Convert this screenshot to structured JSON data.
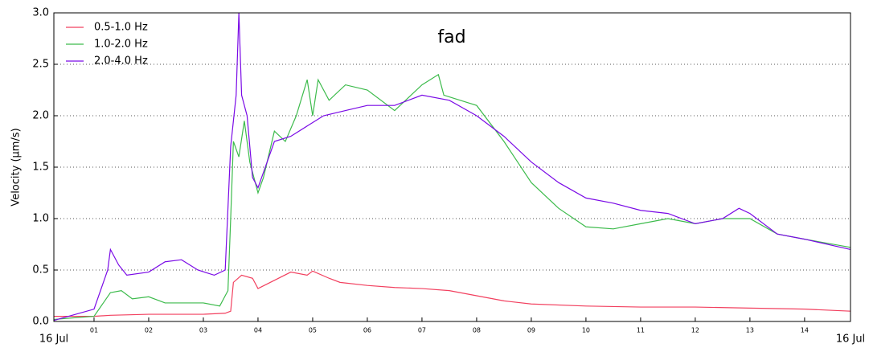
{
  "chart_data": {
    "type": "line",
    "title": "fad",
    "y_label": "Velocity (μm/s)",
    "xlim": [
      0.265,
      14.84
    ],
    "ylim": [
      0,
      3
    ],
    "xticks": [
      {
        "value": 0.265,
        "label": "16 Jul"
      },
      {
        "value": 1,
        "label": "01"
      },
      {
        "value": 2,
        "label": "02"
      },
      {
        "value": 3,
        "label": "03"
      },
      {
        "value": 4,
        "label": "04"
      },
      {
        "value": 5,
        "label": "05"
      },
      {
        "value": 6,
        "label": "06"
      },
      {
        "value": 7,
        "label": "07"
      },
      {
        "value": 8,
        "label": "08"
      },
      {
        "value": 9,
        "label": "09"
      },
      {
        "value": 10,
        "label": "10"
      },
      {
        "value": 11,
        "label": "11"
      },
      {
        "value": 12,
        "label": "12"
      },
      {
        "value": 13,
        "label": "13"
      },
      {
        "value": 14,
        "label": "14"
      },
      {
        "value": 14.84,
        "label": "16 Jul"
      }
    ],
    "yticks": [
      {
        "value": 0,
        "label": "0.0"
      },
      0.5,
      {
        "value": 1,
        "label": "1.0"
      },
      1.5,
      {
        "value": 2,
        "label": "2.0"
      },
      2.5,
      {
        "value": 3,
        "label": "3.0"
      }
    ],
    "grid": true,
    "legend": "upper left",
    "series": [
      {
        "name": "0.5-1.0 Hz",
        "color": "#f2405f",
        "x": [
          0.265,
          1.0,
          1.3,
          2,
          3,
          3.4,
          3.5,
          3.55,
          3.7,
          3.9,
          4.0,
          4.3,
          4.6,
          4.9,
          5.0,
          5.3,
          5.5,
          6,
          6.5,
          7,
          7.5,
          8,
          8.5,
          9,
          10,
          11,
          12,
          13,
          14,
          14.84
        ],
        "values": [
          0.05,
          0.05,
          0.06,
          0.07,
          0.07,
          0.08,
          0.1,
          0.38,
          0.45,
          0.42,
          0.32,
          0.4,
          0.48,
          0.45,
          0.49,
          0.42,
          0.38,
          0.35,
          0.33,
          0.32,
          0.3,
          0.25,
          0.2,
          0.17,
          0.15,
          0.14,
          0.14,
          0.13,
          0.12,
          0.1
        ]
      },
      {
        "name": "1.0-2.0 Hz",
        "color": "#3dbb4c",
        "x": [
          0.265,
          1,
          1.3,
          1.5,
          1.7,
          2,
          2.3,
          3,
          3.3,
          3.45,
          3.5,
          3.55,
          3.65,
          3.75,
          3.85,
          4.0,
          4.1,
          4.3,
          4.5,
          4.7,
          4.9,
          5.0,
          5.1,
          5.3,
          5.6,
          6,
          6.5,
          7,
          7.3,
          7.4,
          8,
          8.5,
          9,
          9.5,
          10,
          10.5,
          11,
          11.5,
          12,
          12.5,
          13,
          13.5,
          14,
          14.84
        ],
        "values": [
          0.02,
          0.05,
          0.28,
          0.3,
          0.22,
          0.24,
          0.18,
          0.18,
          0.15,
          0.3,
          1.0,
          1.75,
          1.6,
          1.95,
          1.55,
          1.25,
          1.4,
          1.85,
          1.75,
          2.0,
          2.35,
          2.0,
          2.35,
          2.15,
          2.3,
          2.25,
          2.05,
          2.3,
          2.4,
          2.2,
          2.1,
          1.75,
          1.35,
          1.1,
          0.92,
          0.9,
          0.95,
          1.0,
          0.95,
          1.0,
          1.0,
          0.85,
          0.8,
          0.72
        ]
      },
      {
        "name": "2.0-4.0 Hz",
        "color": "#7a0ae6",
        "x": [
          0.265,
          1,
          1.25,
          1.3,
          1.45,
          1.6,
          2,
          2.3,
          2.6,
          2.9,
          3.2,
          3.4,
          3.5,
          3.6,
          3.65,
          3.7,
          3.8,
          3.9,
          4.0,
          4.1,
          4.3,
          4.6,
          4.9,
          5.2,
          5.6,
          6,
          6.5,
          7,
          7.5,
          8,
          8.5,
          9,
          9.5,
          10,
          10.5,
          11,
          11.5,
          12,
          12.5,
          12.8,
          13,
          13.5,
          14,
          14.84
        ],
        "values": [
          0.01,
          0.12,
          0.5,
          0.7,
          0.55,
          0.45,
          0.48,
          0.58,
          0.6,
          0.5,
          0.45,
          0.5,
          1.7,
          2.2,
          3.0,
          2.2,
          2.0,
          1.4,
          1.3,
          1.45,
          1.75,
          1.8,
          1.9,
          2.0,
          2.05,
          2.1,
          2.1,
          2.2,
          2.15,
          2.0,
          1.8,
          1.55,
          1.35,
          1.2,
          1.15,
          1.08,
          1.05,
          0.95,
          1.0,
          1.1,
          1.05,
          0.85,
          0.8,
          0.7
        ]
      }
    ]
  }
}
